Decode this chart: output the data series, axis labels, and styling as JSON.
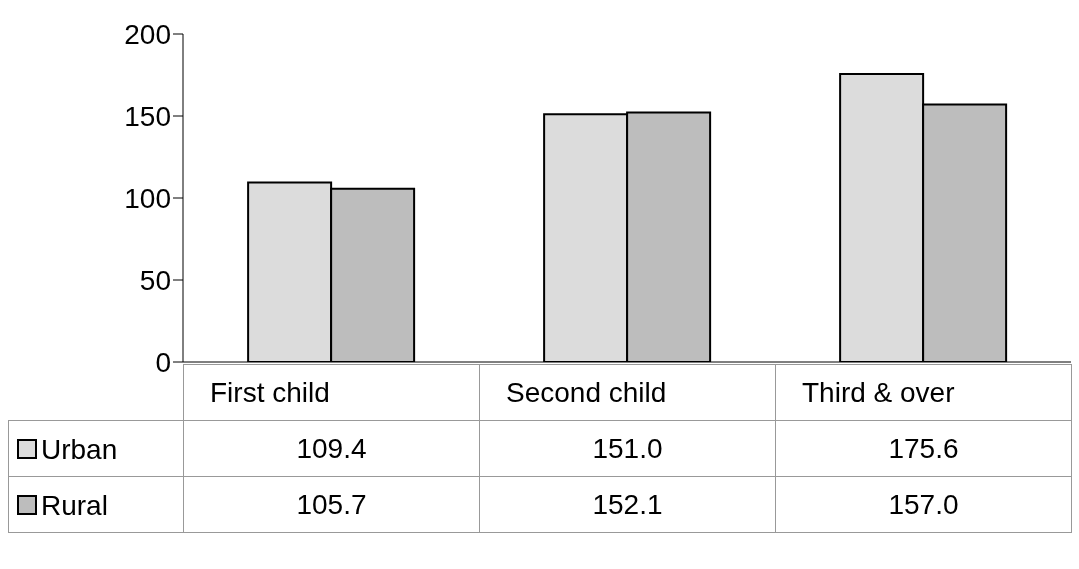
{
  "chart_data": {
    "type": "bar",
    "categories": [
      "First child",
      "Second child",
      "Third & over"
    ],
    "series": [
      {
        "name": "Urban",
        "color": "#dcdcdc",
        "values": [
          109.4,
          151.0,
          175.6
        ],
        "value_labels": [
          "109.4",
          "151.0",
          "175.6"
        ]
      },
      {
        "name": "Rural",
        "color": "#bdbdbd",
        "values": [
          105.7,
          152.1,
          157.0
        ],
        "value_labels": [
          "105.7",
          "152.1",
          "157.0"
        ]
      }
    ],
    "ylim": [
      0,
      200
    ],
    "yticks": [
      0,
      50,
      100,
      150,
      200
    ],
    "grid": false,
    "legend": "bottom left"
  }
}
